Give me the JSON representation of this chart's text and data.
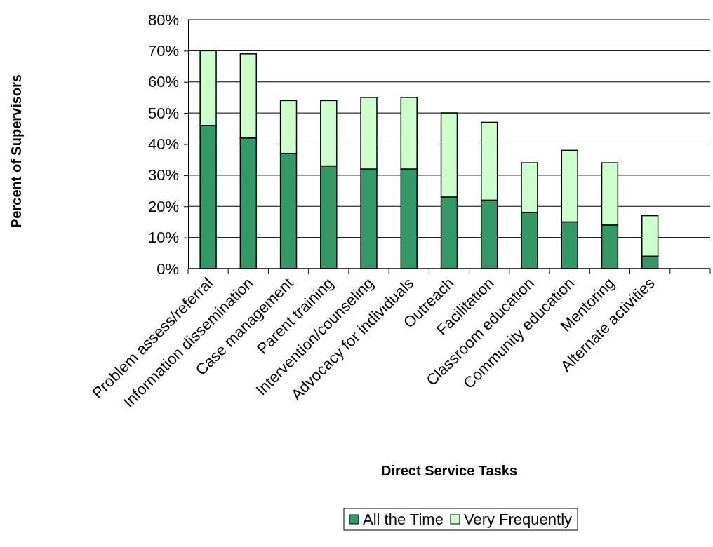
{
  "chart_data": {
    "type": "bar",
    "stacked": true,
    "xlabel": "Direct Service Tasks",
    "ylabel": "Percent of Supervisors",
    "categories": [
      "Problem assess/referral",
      "Information dissemination",
      "Case management",
      "Parent training",
      "Intervention/counseling",
      "Advocacy for individuals",
      "Outreach",
      "Facilitation",
      "Classroom education",
      "Community education",
      "Mentoring",
      "Alternate activities",
      null
    ],
    "series": [
      {
        "name": "All the Time",
        "color": "#339966",
        "values": [
          46,
          42,
          37,
          33,
          32,
          32,
          23,
          22,
          18,
          15,
          14,
          4,
          null
        ]
      },
      {
        "name": "Very Frequently",
        "color": "#ccffcc",
        "values": [
          24,
          27,
          17,
          21,
          23,
          23,
          27,
          25,
          16,
          23,
          20,
          13,
          null
        ]
      }
    ],
    "ylim": [
      0,
      80
    ],
    "yticks": [
      {
        "value": 0,
        "label": "0%"
      },
      {
        "value": 10,
        "label": "10%"
      },
      {
        "value": 20,
        "label": "20%"
      },
      {
        "value": 30,
        "label": "30%"
      },
      {
        "value": 40,
        "label": "40%"
      },
      {
        "value": 50,
        "label": "50%"
      },
      {
        "value": 60,
        "label": "60%"
      },
      {
        "value": 70,
        "label": "70%"
      },
      {
        "value": 80,
        "label": "80%"
      }
    ],
    "grid": "y",
    "legend": "bottom"
  }
}
